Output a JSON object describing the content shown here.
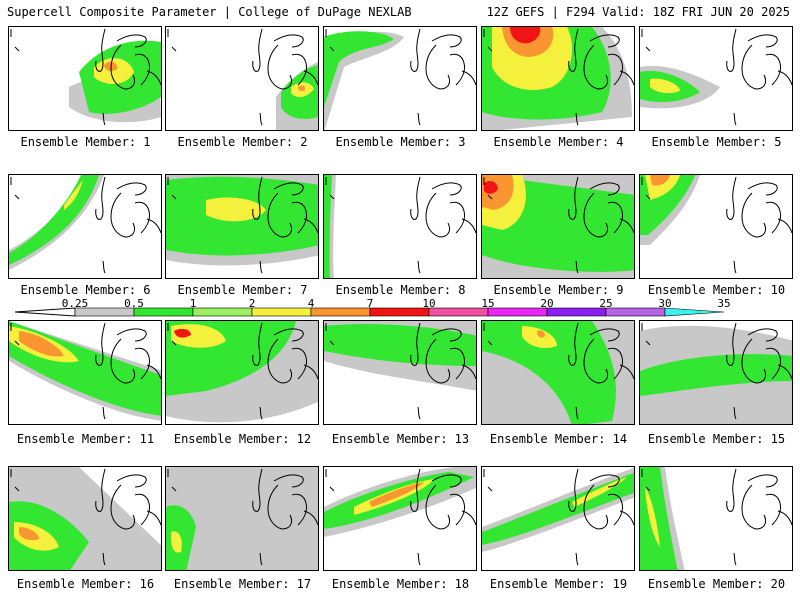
{
  "header": {
    "left": "Supercell Composite Parameter | College of DuPage NEXLAB",
    "right": "12Z GEFS | F294 Valid: 18Z FRI JUN 20 2025"
  },
  "members": [
    {
      "label": "Ensemble Member: 1"
    },
    {
      "label": "Ensemble Member: 2"
    },
    {
      "label": "Ensemble Member: 3"
    },
    {
      "label": "Ensemble Member: 4"
    },
    {
      "label": "Ensemble Member: 5"
    },
    {
      "label": "Ensemble Member: 6"
    },
    {
      "label": "Ensemble Member: 7"
    },
    {
      "label": "Ensemble Member: 8"
    },
    {
      "label": "Ensemble Member: 9"
    },
    {
      "label": "Ensemble Member: 10"
    },
    {
      "label": "Ensemble Member: 11"
    },
    {
      "label": "Ensemble Member: 12"
    },
    {
      "label": "Ensemble Member: 13"
    },
    {
      "label": "Ensemble Member: 14"
    },
    {
      "label": "Ensemble Member: 15"
    },
    {
      "label": "Ensemble Member: 16"
    },
    {
      "label": "Ensemble Member: 17"
    },
    {
      "label": "Ensemble Member: 18"
    },
    {
      "label": "Ensemble Member: 19"
    },
    {
      "label": "Ensemble Member: 20"
    }
  ],
  "colorbar": {
    "ticks": [
      "0.25",
      "0.5",
      "1",
      "2",
      "4",
      "7",
      "10",
      "15",
      "20",
      "25",
      "30",
      "35"
    ],
    "colors": [
      "#c8c8c8",
      "#32e632",
      "#9bf064",
      "#f5f03c",
      "#fa9632",
      "#f01414",
      "#f050a0",
      "#e628f0",
      "#8c1ef0",
      "#b464e6",
      "#3cf0f0"
    ]
  },
  "contour_colors": {
    "gray": "#c8c8c8",
    "green": "#32e632",
    "lightgreen": "#9bf064",
    "yellow": "#f5f03c",
    "orange": "#fa9632",
    "red": "#f01414"
  }
}
